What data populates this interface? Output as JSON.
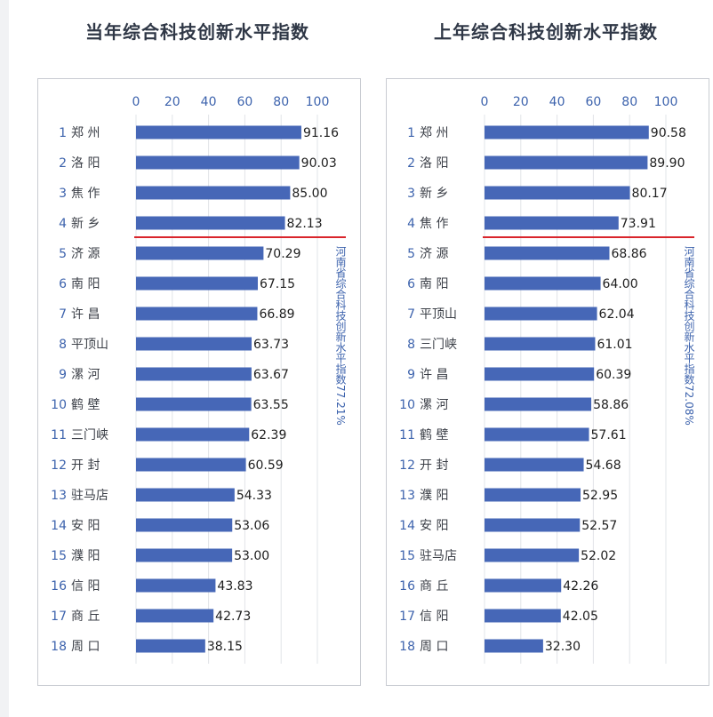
{
  "colors": {
    "bar": "#4667b7",
    "divider": "#d9252b",
    "accent": "#3d63ad",
    "grid": "#e2e4e8"
  },
  "chart_data": [
    {
      "type": "bar",
      "orientation": "horizontal",
      "title": "当年综合科技创新水平指数",
      "xlim": [
        0,
        100
      ],
      "xticks": [
        0,
        20,
        40,
        60,
        80,
        100
      ],
      "categories": [
        {
          "rank": "1",
          "name": "郑 州"
        },
        {
          "rank": "2",
          "name": "洛 阳"
        },
        {
          "rank": "3",
          "name": "焦 作"
        },
        {
          "rank": "4",
          "name": "新 乡"
        },
        {
          "rank": "5",
          "name": "济 源"
        },
        {
          "rank": "6",
          "name": "南 阳"
        },
        {
          "rank": "7",
          "name": "许 昌"
        },
        {
          "rank": "8",
          "name": "平顶山"
        },
        {
          "rank": "9",
          "name": "漯 河"
        },
        {
          "rank": "10",
          "name": "鹤 壁"
        },
        {
          "rank": "11",
          "name": "三门峡"
        },
        {
          "rank": "12",
          "name": "开 封"
        },
        {
          "rank": "13",
          "name": "驻马店"
        },
        {
          "rank": "14",
          "name": "安 阳"
        },
        {
          "rank": "15",
          "name": "濮 阳"
        },
        {
          "rank": "16",
          "name": "信 阳"
        },
        {
          "rank": "17",
          "name": "商 丘"
        },
        {
          "rank": "18",
          "name": "周 口"
        }
      ],
      "values": [
        91.16,
        90.03,
        85.0,
        82.13,
        70.29,
        67.15,
        66.89,
        63.73,
        63.67,
        63.55,
        62.39,
        60.59,
        54.33,
        53.06,
        53.0,
        43.83,
        42.73,
        38.15
      ],
      "value_labels": [
        "91.16",
        "90.03",
        "85.00",
        "82.13",
        "70.29",
        "67.15",
        "66.89",
        "63.73",
        "63.67",
        "63.55",
        "62.39",
        "60.59",
        "54.33",
        "53.06",
        "53.00",
        "43.83",
        "42.73",
        "38.15"
      ],
      "divider_after_index": 3,
      "reference_label": "河南省综合科技创新水平指数77.21%",
      "grid": true
    },
    {
      "type": "bar",
      "orientation": "horizontal",
      "title": "上年综合科技创新水平指数",
      "xlim": [
        0,
        100
      ],
      "xticks": [
        0,
        20,
        40,
        60,
        80,
        100
      ],
      "categories": [
        {
          "rank": "1",
          "name": "郑 州"
        },
        {
          "rank": "2",
          "name": "洛 阳"
        },
        {
          "rank": "3",
          "name": "新 乡"
        },
        {
          "rank": "4",
          "name": "焦 作"
        },
        {
          "rank": "5",
          "name": "济 源"
        },
        {
          "rank": "6",
          "name": "南 阳"
        },
        {
          "rank": "7",
          "name": "平顶山"
        },
        {
          "rank": "8",
          "name": "三门峡"
        },
        {
          "rank": "9",
          "name": "许 昌"
        },
        {
          "rank": "10",
          "name": "漯 河"
        },
        {
          "rank": "11",
          "name": "鹤 壁"
        },
        {
          "rank": "12",
          "name": "开 封"
        },
        {
          "rank": "13",
          "name": "濮 阳"
        },
        {
          "rank": "14",
          "name": "安 阳"
        },
        {
          "rank": "15",
          "name": "驻马店"
        },
        {
          "rank": "16",
          "name": "商 丘"
        },
        {
          "rank": "17",
          "name": "信 阳"
        },
        {
          "rank": "18",
          "name": "周 口"
        }
      ],
      "values": [
        90.58,
        89.9,
        80.17,
        73.91,
        68.86,
        64.0,
        62.04,
        61.01,
        60.39,
        58.86,
        57.61,
        54.68,
        52.95,
        52.57,
        52.02,
        42.26,
        42.05,
        32.3
      ],
      "value_labels": [
        "90.58",
        "89.90",
        "80.17",
        "73.91",
        "68.86",
        "64.00",
        "62.04",
        "61.01",
        "60.39",
        "58.86",
        "57.61",
        "54.68",
        "52.95",
        "52.57",
        "52.02",
        "42.26",
        "42.05",
        "32.30"
      ],
      "divider_after_index": 3,
      "reference_label": "河南省综合科技创新水平指数72.08%",
      "grid": true
    }
  ]
}
